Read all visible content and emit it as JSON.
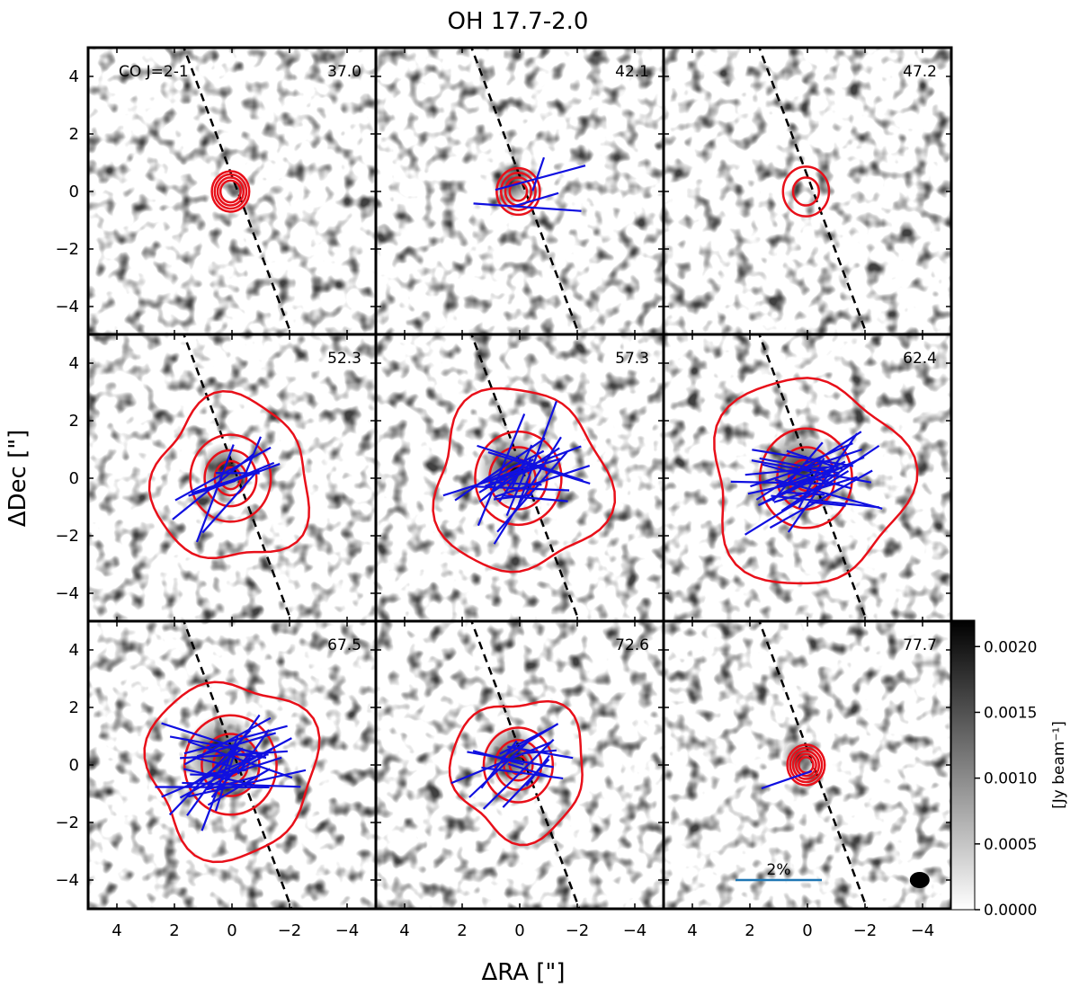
{
  "chart_data": {
    "type": "channel-map",
    "title": "OH 17.7-2.0",
    "xlabel": "ΔRA [\"]",
    "ylabel": "ΔDec [\"]",
    "xlim": [
      5,
      -5
    ],
    "ylim": [
      -5,
      5
    ],
    "xticks": [
      4,
      2,
      0,
      -2,
      -4
    ],
    "xtick_labels": [
      "4",
      "2",
      "0",
      "−2",
      "−4"
    ],
    "yticks": [
      4,
      2,
      0,
      -2,
      -4
    ],
    "ytick_labels": [
      "4",
      "2",
      "0",
      "−2",
      "−4"
    ],
    "line_label": "CO J=2-1",
    "velocity_channels": [
      "37.0",
      "42.1",
      "47.2",
      "52.3",
      "57.3",
      "62.4",
      "67.5",
      "72.6",
      "77.7"
    ],
    "dashed_axis_endpoints": [
      [
        1.9,
        5.6
      ],
      [
        -2.3,
        -5.6
      ]
    ],
    "contour_radii_arcsec": [
      [
        0.35,
        0.45,
        0.55,
        0.65
      ],
      [
        0.3,
        0.45,
        0.6,
        0.75
      ],
      [
        0.45,
        0.8
      ],
      [
        0.35,
        0.55,
        0.9,
        1.4,
        2.7
      ],
      [
        0.4,
        0.6,
        1.0,
        1.5,
        3.0
      ],
      [
        0.4,
        0.6,
        1.0,
        1.6,
        3.4
      ],
      [
        0.35,
        0.6,
        1.0,
        1.6,
        2.9
      ],
      [
        0.3,
        0.5,
        0.8,
        1.2,
        2.3
      ],
      [
        0.25,
        0.35,
        0.45,
        0.55,
        0.65
      ]
    ],
    "polarization_vector_counts": [
      0,
      4,
      0,
      10,
      22,
      26,
      28,
      14,
      1
    ],
    "colorbar": {
      "label": "[Jy beam⁻¹]",
      "range": [
        0.0,
        0.0022
      ],
      "ticks": [
        "0.0000",
        "0.0005",
        "0.0010",
        "0.0015",
        "0.0020"
      ]
    },
    "scale_bar_label": "2%",
    "colors": {
      "contour": "#e8101a",
      "vector": "#1010e0",
      "scale_bar": "#1f77b4",
      "axis_line": "#000000"
    }
  }
}
